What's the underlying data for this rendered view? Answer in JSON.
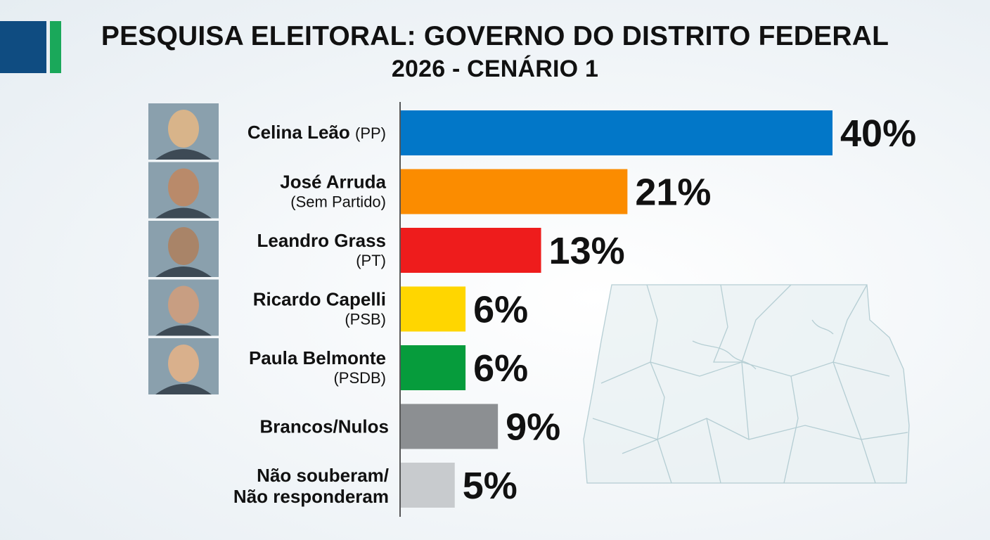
{
  "header": {
    "title_line1": "PESQUISA ELEITORAL: GOVERNO DO DISTRITO FEDERAL",
    "title_line2": "2026 - CENÁRIO 1"
  },
  "chart_data": {
    "type": "bar",
    "orientation": "horizontal",
    "title": "PESQUISA ELEITORAL: GOVERNO DO DISTRITO FEDERAL 2026 - CENÁRIO 1",
    "xlim": [
      0,
      40
    ],
    "grid": false,
    "legend": "none",
    "categories": [
      {
        "name": "Celina Leão",
        "party": "(PP)",
        "value": 40,
        "label": "40%",
        "color": "#0277c8",
        "photo": true,
        "photo_color": "#d8b48a"
      },
      {
        "name": "José Arruda",
        "party": "(Sem Partido)",
        "value": 21,
        "label": "21%",
        "color": "#fb8c00",
        "photo": true,
        "photo_color": "#b98a6a"
      },
      {
        "name": "Leandro Grass",
        "party": "(PT)",
        "value": 13,
        "label": "13%",
        "color": "#ee1c1c",
        "photo": true,
        "photo_color": "#a98468"
      },
      {
        "name": "Ricardo Capelli",
        "party": "(PSB)",
        "value": 6,
        "label": "6%",
        "color": "#ffd600",
        "photo": true,
        "photo_color": "#c89e82"
      },
      {
        "name": "Paula Belmonte",
        "party": "(PSDB)",
        "value": 6,
        "label": "6%",
        "color": "#069c3c",
        "photo": true,
        "photo_color": "#d9b08c"
      },
      {
        "name": "Brancos/Nulos",
        "party": "",
        "value": 9,
        "label": "9%",
        "color": "#8c8f92",
        "photo": false
      },
      {
        "name": "Não souberam/",
        "name2": "Não responderam",
        "party": "",
        "value": 5,
        "label": "5%",
        "color": "#c8cbce",
        "photo": false
      }
    ]
  }
}
